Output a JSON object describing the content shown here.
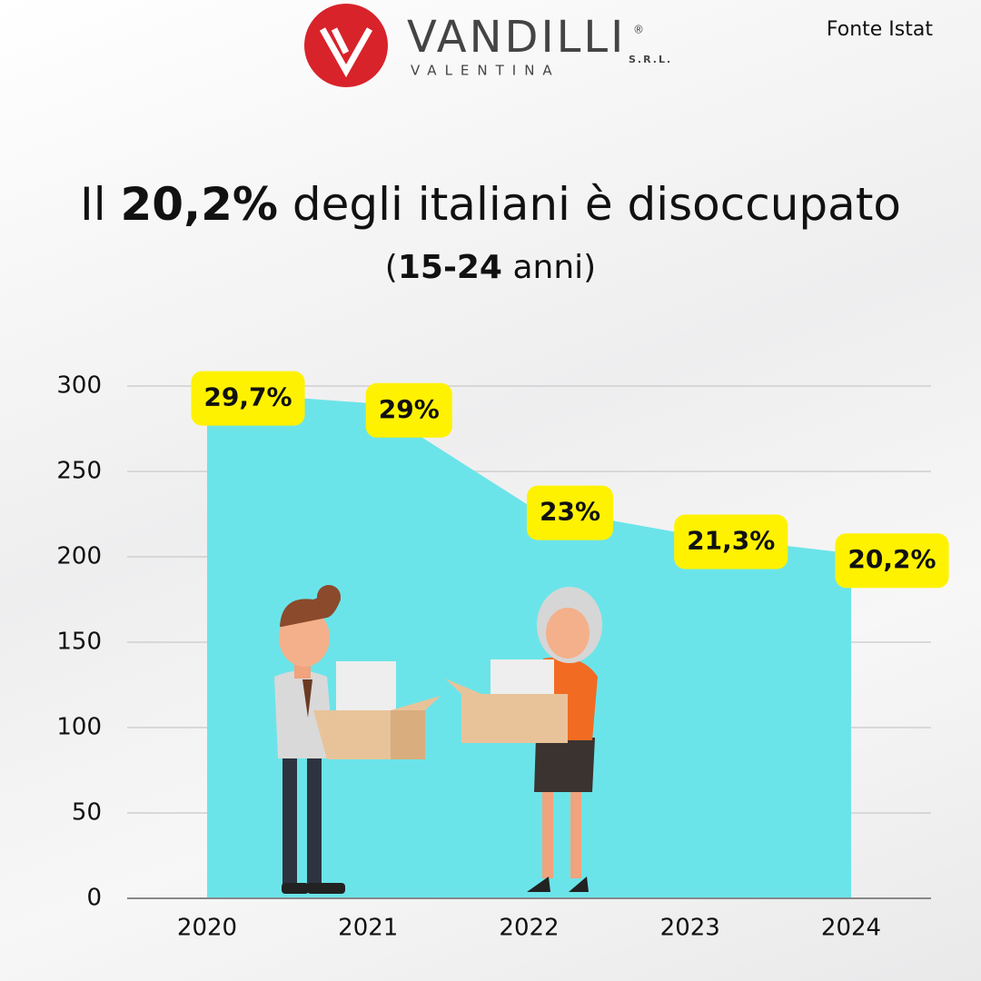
{
  "logo": {
    "name": "VANDILLI",
    "sub": "VALENTINA",
    "suffix": "S.R.L.",
    "mark": "®"
  },
  "source": "Fonte Istat",
  "chart_data": {
    "type": "area",
    "title": {
      "prefix": "Il",
      "highlight": "20,2%",
      "suffix": "degli italiani è disoccupato"
    },
    "subtitle": {
      "open": "(",
      "highlight": "15-24",
      "suffix": "anni)"
    },
    "categories": [
      "2020",
      "2021",
      "2022",
      "2023",
      "2024"
    ],
    "values": [
      297,
      290,
      230,
      213,
      202
    ],
    "value_labels": [
      "29,7%",
      "29%",
      "23%",
      "21,3%",
      "20,2%"
    ],
    "color": "#6be4e9",
    "label_color": "#fff200",
    "ylim": [
      0,
      300
    ],
    "yticks": [
      0,
      50,
      100,
      150,
      200,
      250,
      300
    ],
    "grid": true
  }
}
